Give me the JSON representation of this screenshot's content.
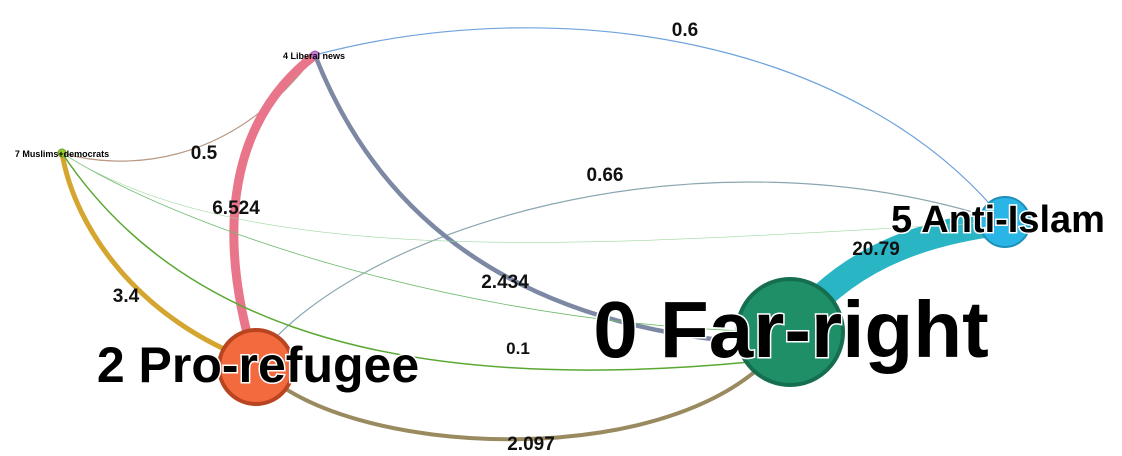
{
  "graph": {
    "nodes": [
      {
        "id": "n0",
        "label": "0 Far-right",
        "color": "#1f8f68",
        "border": "#166e50"
      },
      {
        "id": "n2",
        "label": "2 Pro-refugee",
        "color": "#f26a3d",
        "border": "#b8451f"
      },
      {
        "id": "n5",
        "label": "5 Anti-Islam",
        "color": "#29b6e6",
        "border": "#1e8fb8"
      },
      {
        "id": "n4",
        "label": "4 Liberal news",
        "color": "#c77dd8",
        "border": "#9a55ad"
      },
      {
        "id": "n7",
        "label": "7 Muslims+democrats",
        "color": "#9acd32",
        "border": "#6b9a1a"
      }
    ],
    "edges": [
      {
        "from": "4 Liberal news",
        "to": "5 Anti-Islam",
        "weight": "0.6",
        "color": "#6fa3dd"
      },
      {
        "from": "7 Muslims+democrats",
        "to": "4 Liberal news",
        "weight": "0.5",
        "color": "#b99a86"
      },
      {
        "from": "4 Liberal news",
        "to": "2 Pro-refugee",
        "weight": "6.524",
        "color": "#e8758a"
      },
      {
        "from": "2 Pro-refugee",
        "to": "5 Anti-Islam",
        "weight": "0.66",
        "color": "#8aa6b0"
      },
      {
        "from": "5 Anti-Islam",
        "to": "0 Far-right",
        "weight": "20.79",
        "color": "#2ab5c4"
      },
      {
        "from": "4 Liberal news",
        "to": "0 Far-right",
        "weight": "2.434",
        "color": "#7d89a4"
      },
      {
        "from": "7 Muslims+democrats",
        "to": "2 Pro-refugee",
        "weight": "3.4",
        "color": "#d4a630"
      },
      {
        "from": "7 Muslims+democrats",
        "to": "0 Far-right",
        "weight": "0.1",
        "color": "#6dbb6d"
      },
      {
        "from": "2 Pro-refugee",
        "to": "0 Far-right",
        "weight": "2.097",
        "color": "#9a8a60"
      },
      {
        "from": "7 Muslims+democrats",
        "to": "0 Far-right",
        "weight": "",
        "color": "#5aa832"
      }
    ]
  }
}
